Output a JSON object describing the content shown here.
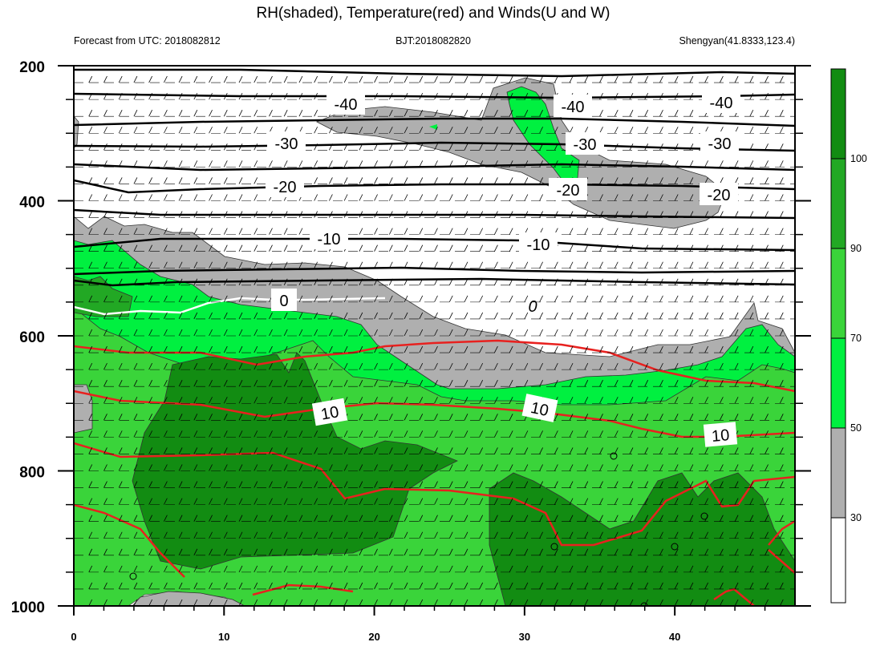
{
  "title": "RH(shaded), Temperature(red) and Winds(U and W)",
  "left_subtitle": "Forecast from UTC: 2018082812",
  "center_subtitle": "BJT:2018082820",
  "right_subtitle": "Shengyan(41.8333,123.4)",
  "colors": {
    "rh_lt30": "#ffffff",
    "rh_30_50": "#afafaf",
    "rh_50_70": "#00f040",
    "rh_70_90": "#3ad43a",
    "rh_90_100": "#22a824",
    "rh_gt100": "#128c12",
    "temperature_line": "#e8211f",
    "zero_isotherm": "#ffffff",
    "isotherm_black": "#000000"
  },
  "chart_data": {
    "type": "heatmap",
    "x_ticks": [
      "0",
      "10",
      "20",
      "30",
      "40"
    ],
    "xlim": [
      0,
      48
    ],
    "y_ticks": [
      "200",
      "400",
      "600",
      "800",
      "1000"
    ],
    "ylim": [
      200,
      1000
    ],
    "rh_colorbar": {
      "labels": [
        "30",
        "50",
        "70",
        "90",
        "100"
      ],
      "boundaries": [
        30,
        50,
        70,
        90,
        100
      ]
    },
    "temperature_contour_labels": [
      "-40",
      "-40",
      "-40",
      "-30",
      "-30",
      "-30",
      "-20",
      "-20",
      "-20",
      "-10",
      "-10",
      "0",
      "0",
      "10",
      "10",
      "10"
    ],
    "isotherms": [
      {
        "value": -40,
        "pressure": [
          270,
          272,
          274,
          274,
          272,
          270
        ]
      },
      {
        "value": -30,
        "pressure": [
          335,
          333,
          330,
          330,
          328,
          330
        ]
      },
      {
        "value": -20,
        "pressure": [
          410,
          408,
          405,
          405,
          405,
          408
        ]
      },
      {
        "value": -10,
        "pressure": [
          500,
          500,
          500,
          500,
          500,
          500
        ]
      },
      {
        "value": 0,
        "pressure": [
          605,
          608,
          600,
          595,
          590,
          588
        ]
      },
      {
        "value": 10,
        "pressure": [
          740,
          760,
          770,
          785,
          808,
          810
        ]
      },
      {
        "value": 20,
        "pressure": [
          850,
          860,
          900,
          895,
          900,
          895
        ]
      }
    ]
  }
}
